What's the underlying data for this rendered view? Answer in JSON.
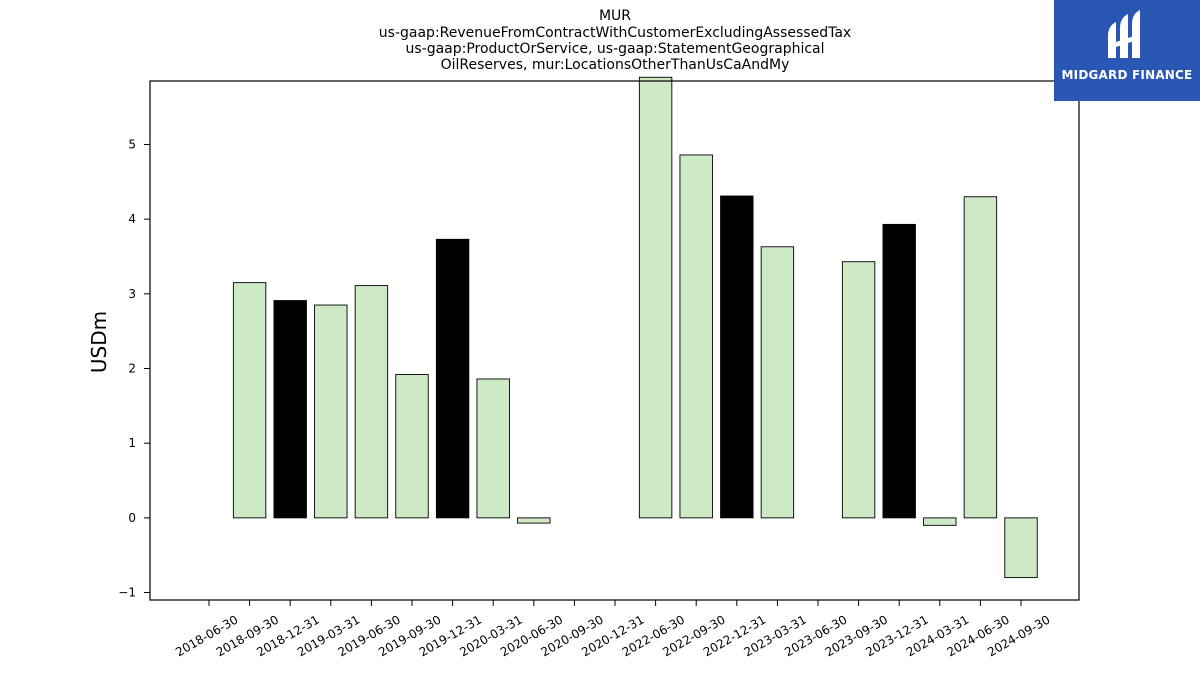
{
  "brand": {
    "name": "MIDGARD FINANCE",
    "color": "#2a57b4",
    "icon": "midgard-logo-icon"
  },
  "chart_data": {
    "type": "bar",
    "title": [
      "MUR",
      "us-gaap:RevenueFromContractWithCustomerExcludingAssessedTax",
      "us-gaap:ProductOrService, us-gaap:StatementGeographical",
      "OilReserves, mur:LocationsOtherThanUsCaAndMy"
    ],
    "xlabel": "",
    "ylabel": "USDm",
    "ylim": [
      -1.1,
      5.85
    ],
    "yticks": [
      -1,
      0,
      1,
      2,
      3,
      4,
      5
    ],
    "categories": [
      "2018-06-30",
      "2018-09-30",
      "2018-12-31",
      "2019-03-31",
      "2019-06-30",
      "2019-09-30",
      "2019-12-31",
      "2020-03-31",
      "2020-06-30",
      "2020-09-30",
      "2020-12-31",
      "2022-06-30",
      "2022-09-30",
      "2022-12-31",
      "2023-03-31",
      "2023-06-30",
      "2023-09-30",
      "2023-12-31",
      "2024-03-31",
      "2024-06-30",
      "2024-09-30"
    ],
    "values": [
      0,
      3.15,
      2.91,
      2.85,
      3.11,
      1.92,
      3.73,
      1.86,
      -0.07,
      0,
      0,
      5.9,
      4.86,
      4.31,
      3.63,
      0,
      3.43,
      3.93,
      -0.1,
      4.3,
      -0.8
    ],
    "highlight": [
      false,
      false,
      true,
      false,
      false,
      false,
      true,
      false,
      false,
      false,
      false,
      false,
      false,
      true,
      false,
      false,
      false,
      true,
      false,
      false,
      false
    ],
    "colors": {
      "bar": "#cde9c6",
      "highlight": "#000000",
      "edge": "#000000"
    },
    "grid": false,
    "legend": "none"
  }
}
